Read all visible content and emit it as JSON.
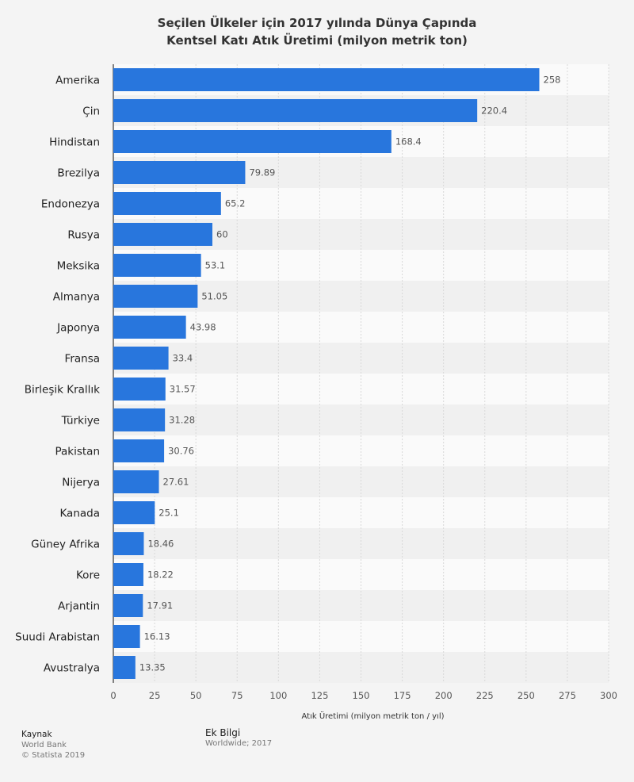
{
  "chart_data": {
    "type": "bar",
    "orientation": "horizontal",
    "title_line1": "Seçilen Ülkeler için 2017 yılında Dünya Çapında",
    "title_line2": "Kentsel Katı Atık Üretimi (milyon metrik ton)",
    "xlabel": "Atık Üretimi (milyon metrik ton / yıl)",
    "ylabel": "",
    "xlim": [
      0,
      300
    ],
    "xticks": [
      0,
      25,
      50,
      75,
      100,
      125,
      150,
      175,
      200,
      225,
      250,
      275,
      300
    ],
    "grid": true,
    "categories": [
      "Amerika",
      "Çin",
      "Hindistan",
      "Brezilya",
      "Endonezya",
      "Rusya",
      "Meksika",
      "Almanya",
      "Japonya",
      "Fransa",
      "Birleşik Krallık",
      "Türkiye",
      "Pakistan",
      "Nijerya",
      "Kanada",
      "Güney Afrika",
      "Kore",
      "Arjantin",
      "Suudi Arabistan",
      "Avustralya"
    ],
    "values": [
      258,
      220.4,
      168.4,
      79.89,
      65.2,
      60,
      53.1,
      51.05,
      43.98,
      33.4,
      31.57,
      31.28,
      30.76,
      27.61,
      25.1,
      18.46,
      18.22,
      17.91,
      16.13,
      13.35
    ],
    "value_labels": [
      "258",
      "220.4",
      "168.4",
      "79.89",
      "65.2",
      "60",
      "53.1",
      "51.05",
      "43.98",
      "33.4",
      "31.57",
      "31.28",
      "30.76",
      "27.61",
      "25.1",
      "18.46",
      "18.22",
      "17.91",
      "16.13",
      "13.35"
    ],
    "bar_color": "#2876dd"
  },
  "footer": {
    "source_heading": "Kaynak",
    "source_name": "World Bank",
    "copyright": "© Statista 2019",
    "extra_heading": "Ek Bilgi",
    "extra_text": "Worldwide; 2017"
  },
  "colors": {
    "background": "#f4f4f4",
    "row_stripe_light": "#fafafa",
    "row_stripe_dark": "#f0f0f0",
    "grid": "#d9d9d9"
  }
}
